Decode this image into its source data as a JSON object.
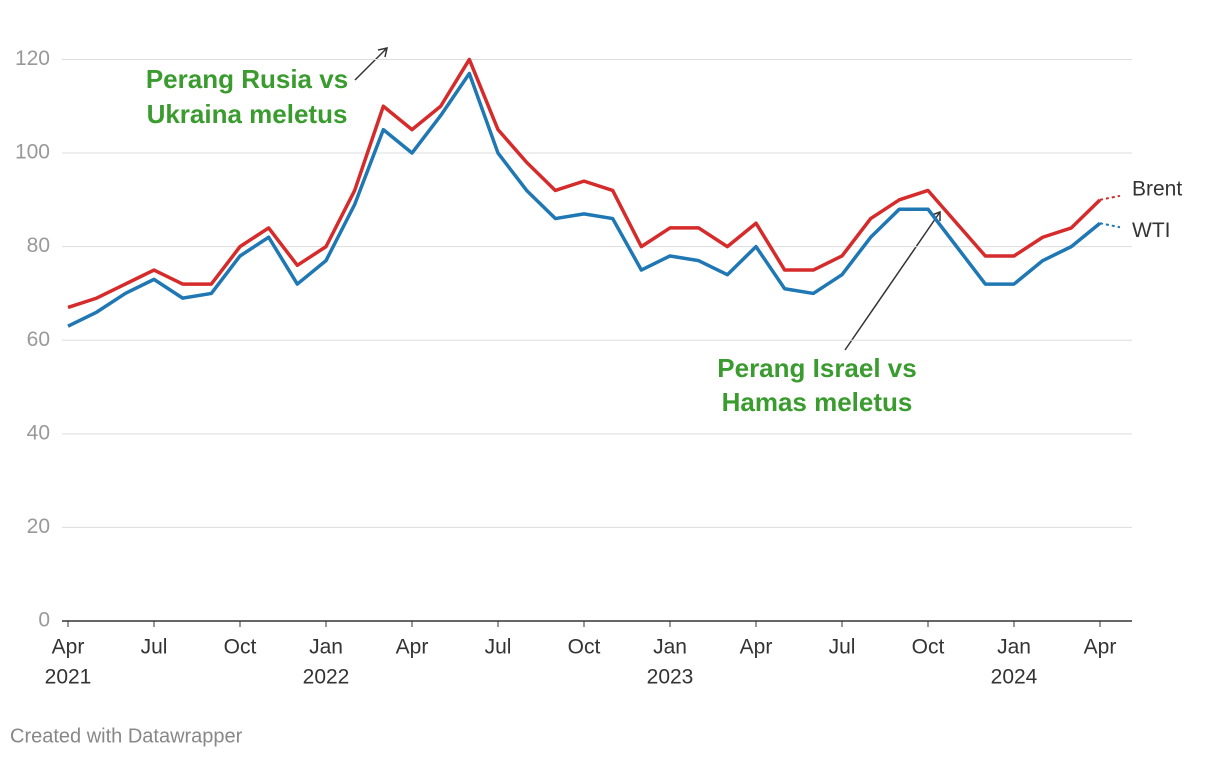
{
  "chart_data": {
    "type": "line",
    "x": [
      "2021-04",
      "2021-05",
      "2021-06",
      "2021-07",
      "2021-08",
      "2021-09",
      "2021-10",
      "2021-11",
      "2021-12",
      "2022-01",
      "2022-02",
      "2022-03",
      "2022-04",
      "2022-05",
      "2022-06",
      "2022-07",
      "2022-08",
      "2022-09",
      "2022-10",
      "2022-11",
      "2022-12",
      "2023-01",
      "2023-02",
      "2023-03",
      "2023-04",
      "2023-05",
      "2023-06",
      "2023-07",
      "2023-08",
      "2023-09",
      "2023-10",
      "2023-11",
      "2023-12",
      "2024-01",
      "2024-02",
      "2024-03",
      "2024-04"
    ],
    "series": [
      {
        "name": "Brent",
        "color": "#d62b2b",
        "values": [
          67,
          69,
          72,
          75,
          72,
          72,
          80,
          84,
          76,
          80,
          92,
          110,
          105,
          110,
          120,
          105,
          98,
          92,
          94,
          92,
          80,
          84,
          84,
          80,
          85,
          75,
          75,
          78,
          86,
          90,
          92,
          85,
          78,
          78,
          82,
          84,
          90
        ]
      },
      {
        "name": "WTI",
        "color": "#1f77b4",
        "values": [
          63,
          66,
          70,
          73,
          69,
          70,
          78,
          82,
          72,
          77,
          89,
          105,
          100,
          108,
          117,
          100,
          92,
          86,
          87,
          86,
          75,
          78,
          77,
          74,
          80,
          71,
          70,
          74,
          82,
          88,
          88,
          80,
          72,
          72,
          77,
          80,
          85
        ]
      }
    ],
    "xlim": [
      "2021-04",
      "2024-04"
    ],
    "xticks": [
      {
        "value": "2021-04",
        "label": "Apr"
      },
      {
        "value": "2021-07",
        "label": "Jul"
      },
      {
        "value": "2021-10",
        "label": "Oct"
      },
      {
        "value": "2022-01",
        "label": "Jan"
      },
      {
        "value": "2022-04",
        "label": "Apr"
      },
      {
        "value": "2022-07",
        "label": "Jul"
      },
      {
        "value": "2022-10",
        "label": "Oct"
      },
      {
        "value": "2023-01",
        "label": "Jan"
      },
      {
        "value": "2023-04",
        "label": "Apr"
      },
      {
        "value": "2023-07",
        "label": "Jul"
      },
      {
        "value": "2023-10",
        "label": "Oct"
      },
      {
        "value": "2024-01",
        "label": "Jan"
      },
      {
        "value": "2024-04",
        "label": "Apr"
      }
    ],
    "year_labels": [
      {
        "value": "2021-04",
        "label": "2021"
      },
      {
        "value": "2022-01",
        "label": "2022"
      },
      {
        "value": "2023-01",
        "label": "2023"
      },
      {
        "value": "2024-01",
        "label": "2024"
      }
    ],
    "ylim": [
      0,
      128
    ],
    "yticks": [
      0,
      20,
      40,
      60,
      80,
      100,
      120
    ],
    "grid": true,
    "annotations": [
      {
        "lines": [
          "Perang Rusia vs",
          "Ukraina meletus"
        ]
      },
      {
        "lines": [
          "Perang Israel vs",
          "Hamas meletus"
        ]
      }
    ],
    "footer": "Created with Datawrapper"
  }
}
